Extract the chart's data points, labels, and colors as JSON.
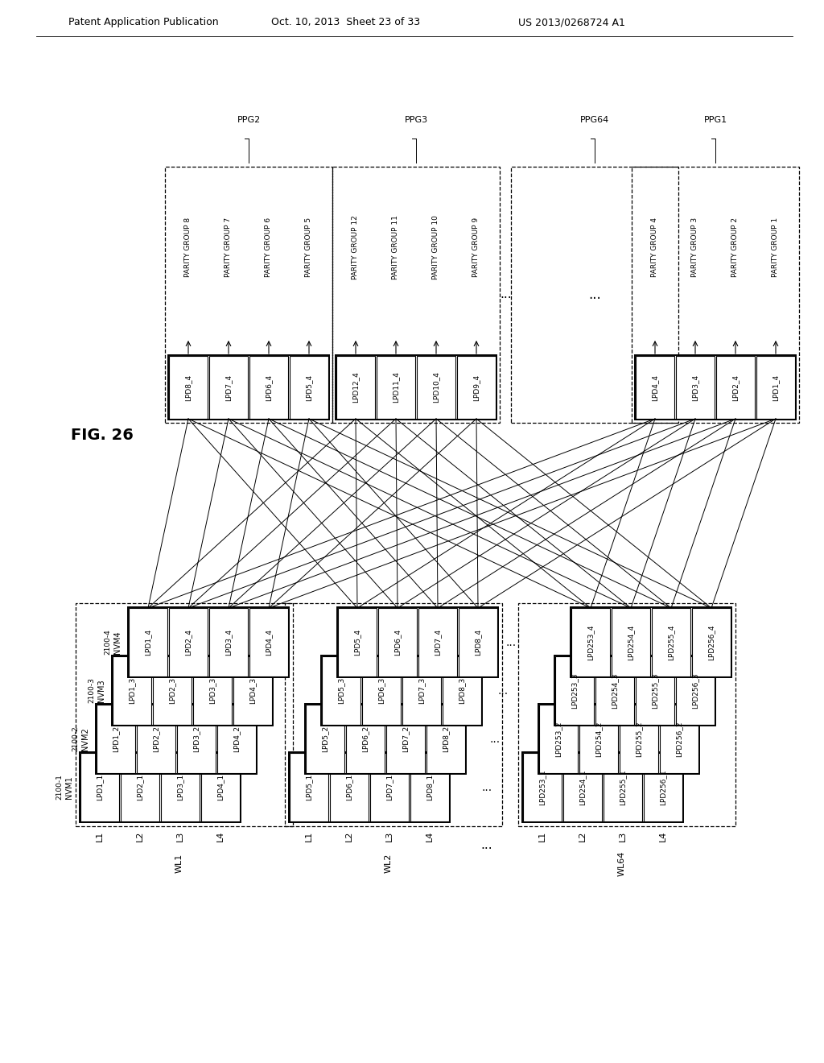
{
  "header_left": "Patent Application Publication",
  "header_mid": "Oct. 10, 2013  Sheet 23 of 33",
  "header_right": "US 2013/0268724 A1",
  "fig_label": "FIG. 26",
  "nvm_labels": [
    "NVM1",
    "NVM2",
    "NVM3",
    "NVM4"
  ],
  "nvm_2100": [
    "2100-1",
    "2100-2",
    "2100-3",
    "2100-4"
  ],
  "wl_labels": [
    "WL1",
    "WL2",
    "WL64"
  ],
  "lane_labels": [
    "L1",
    "L2",
    "L3",
    "L4"
  ],
  "ppg_configs": [
    {
      "label": "PPG2",
      "cells": [
        "LPD8_4",
        "LPD7_4",
        "LPD6_4",
        "LPD5_4"
      ],
      "pgroups": [
        "PARITY GROUP 8",
        "PARITY GROUP 7",
        "PARITY GROUP 6",
        "PARITY GROUP 5"
      ]
    },
    {
      "label": "PPG3",
      "cells": [
        "LPD12_4",
        "LPD11_4",
        "LPD10_4",
        "LPD9_4"
      ],
      "pgroups": [
        "PARITY GROUP 12",
        "PARITY GROUP 11",
        "PARITY GROUP 10",
        "PARITY GROUP 9"
      ]
    },
    {
      "label": "PPG64",
      "cells": [],
      "pgroups": []
    },
    {
      "label": "PPG1",
      "cells": [
        "LPD4_4",
        "LPD3_4",
        "LPD2_4",
        "LPD1_4"
      ],
      "pgroups": [
        "PARITY GROUP 4",
        "PARITY GROUP 3",
        "PARITY GROUP 2",
        "PARITY GROUP 1"
      ]
    }
  ]
}
